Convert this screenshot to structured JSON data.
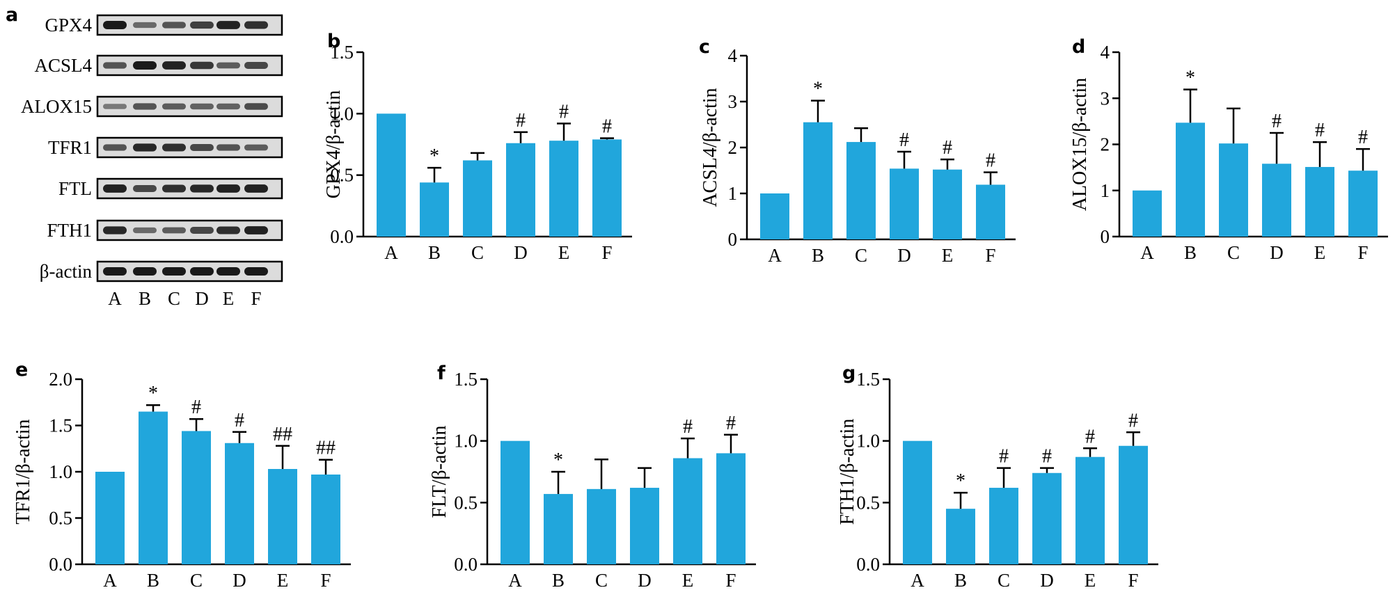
{
  "colors": {
    "bar": "#21a6dc",
    "axis": "#000000",
    "band": "#1a1a1a",
    "blot_bg": "#dcdcdc"
  },
  "western_blot": {
    "panel_label": "a",
    "rows": [
      {
        "label": "GPX4",
        "intensity": [
          1.0,
          0.45,
          0.6,
          0.75,
          0.95,
          0.85
        ]
      },
      {
        "label": "ACSL4",
        "intensity": [
          0.6,
          1.0,
          0.95,
          0.8,
          0.55,
          0.7
        ]
      },
      {
        "label": "ALOX15",
        "intensity": [
          0.35,
          0.6,
          0.55,
          0.5,
          0.5,
          0.65
        ]
      },
      {
        "label": "TFR1",
        "intensity": [
          0.6,
          0.9,
          0.85,
          0.7,
          0.6,
          0.55
        ]
      },
      {
        "label": "FTL",
        "intensity": [
          0.95,
          0.7,
          0.85,
          0.9,
          0.95,
          0.95
        ]
      },
      {
        "label": "FTH1",
        "intensity": [
          0.9,
          0.45,
          0.55,
          0.7,
          0.85,
          0.95
        ]
      },
      {
        "label": "β-actin",
        "intensity": [
          1.0,
          1.0,
          1.0,
          1.0,
          1.0,
          1.0
        ]
      }
    ],
    "lanes": [
      "A",
      "B",
      "C",
      "D",
      "E",
      "F"
    ]
  },
  "chart_data": [
    {
      "id": "b",
      "panel_label": "b",
      "type": "bar",
      "ylabel": "GPX4/β-actin",
      "categories": [
        "A",
        "B",
        "C",
        "D",
        "E",
        "F"
      ],
      "values": [
        1.0,
        0.44,
        0.62,
        0.76,
        0.78,
        0.79
      ],
      "errors": [
        0,
        0.12,
        0.06,
        0.09,
        0.14,
        0.01
      ],
      "annotations": [
        "",
        "*",
        "",
        "#",
        "#",
        "#"
      ],
      "ylim": [
        0,
        1.5
      ],
      "yticks": [
        "0.0",
        "0.5",
        "1.0",
        "1.5"
      ]
    },
    {
      "id": "c",
      "panel_label": "c",
      "type": "bar",
      "ylabel": "ACSL4/β-actin",
      "categories": [
        "A",
        "B",
        "C",
        "D",
        "E",
        "F"
      ],
      "values": [
        1.0,
        2.55,
        2.12,
        1.54,
        1.52,
        1.19
      ],
      "errors": [
        0,
        0.47,
        0.3,
        0.37,
        0.22,
        0.27
      ],
      "annotations": [
        "",
        "*",
        "",
        "#",
        "#",
        "#"
      ],
      "ylim": [
        0,
        4
      ],
      "yticks": [
        "0",
        "1",
        "2",
        "3",
        "4"
      ]
    },
    {
      "id": "d",
      "panel_label": "d",
      "type": "bar",
      "ylabel": "ALOX15/β-actin",
      "categories": [
        "A",
        "B",
        "C",
        "D",
        "E",
        "F"
      ],
      "values": [
        1.0,
        2.47,
        2.02,
        1.58,
        1.51,
        1.43
      ],
      "errors": [
        0,
        0.72,
        0.76,
        0.67,
        0.54,
        0.47
      ],
      "annotations": [
        "",
        "*",
        "",
        "#",
        "#",
        "#"
      ],
      "ylim": [
        0,
        4
      ],
      "yticks": [
        "0",
        "1",
        "2",
        "3",
        "4"
      ]
    },
    {
      "id": "e",
      "panel_label": "e",
      "type": "bar",
      "ylabel": "TFR1/β-actin",
      "categories": [
        "A",
        "B",
        "C",
        "D",
        "E",
        "F"
      ],
      "values": [
        1.0,
        1.65,
        1.44,
        1.31,
        1.03,
        0.97
      ],
      "errors": [
        0,
        0.07,
        0.13,
        0.12,
        0.25,
        0.16
      ],
      "annotations": [
        "",
        "*",
        "#",
        "#",
        "##",
        "##"
      ],
      "ylim": [
        0,
        2.0
      ],
      "yticks": [
        "0.0",
        "0.5",
        "1.0",
        "1.5",
        "2.0"
      ]
    },
    {
      "id": "f",
      "panel_label": "f",
      "type": "bar",
      "ylabel": "FLT/β-actin",
      "categories": [
        "A",
        "B",
        "C",
        "D",
        "E",
        "F"
      ],
      "values": [
        1.0,
        0.57,
        0.61,
        0.62,
        0.86,
        0.9
      ],
      "errors": [
        0,
        0.18,
        0.24,
        0.16,
        0.16,
        0.15
      ],
      "annotations": [
        "",
        "*",
        "",
        "",
        "#",
        "#"
      ],
      "ylim": [
        0,
        1.5
      ],
      "yticks": [
        "0.0",
        "0.5",
        "1.0",
        "1.5"
      ]
    },
    {
      "id": "g",
      "panel_label": "g",
      "type": "bar",
      "ylabel": "FTH1/β-actin",
      "categories": [
        "A",
        "B",
        "C",
        "D",
        "E",
        "F"
      ],
      "values": [
        1.0,
        0.45,
        0.62,
        0.74,
        0.87,
        0.96
      ],
      "errors": [
        0,
        0.13,
        0.16,
        0.04,
        0.07,
        0.11
      ],
      "annotations": [
        "",
        "*",
        "#",
        "#",
        "#",
        "#"
      ],
      "ylim": [
        0,
        1.5
      ],
      "yticks": [
        "0.0",
        "0.5",
        "1.0",
        "1.5"
      ]
    }
  ]
}
